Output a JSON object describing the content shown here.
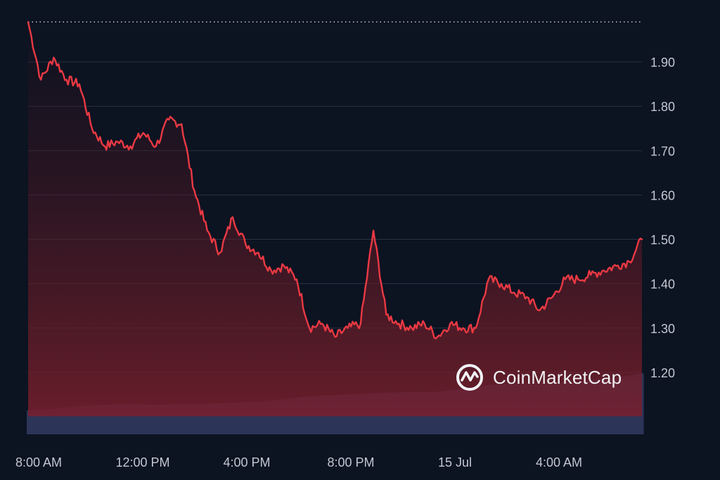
{
  "watermark": {
    "text": "CoinMarketCap",
    "icon": "coinmarketcap-logo-icon"
  },
  "colors": {
    "background": "#0c1321",
    "price_line": "#ea3943",
    "area_fill_top": "#7a1f2c",
    "volume_bar": "#2c3558",
    "grid": "#2a3344",
    "tick_text": "#c3c8d2"
  },
  "chart_data": {
    "type": "line",
    "ylim": [
      1.1,
      2.0
    ],
    "yticks": [
      1.9,
      1.8,
      1.7,
      1.6,
      1.5,
      1.4,
      1.3,
      1.2
    ],
    "ytick_labels": [
      "1.90",
      "1.80",
      "1.70",
      "1.60",
      "1.50",
      "1.40",
      "1.30",
      "1.20"
    ],
    "xlim": [
      0,
      24
    ],
    "xticks": [
      0,
      4,
      8,
      12,
      16,
      20
    ],
    "xtick_labels": [
      "8:00 AM",
      "12:00 PM",
      "4:00 PM",
      "8:00 PM",
      "15 Jul",
      "4:00 AM"
    ],
    "grid": true,
    "reference_line_dotted": 1.99,
    "series": [
      {
        "kind": "price",
        "x": [
          0,
          0.5,
          1,
          1.5,
          2,
          2.5,
          3,
          3.5,
          4,
          4.5,
          5,
          5.5,
          6,
          6.5,
          7,
          7.5,
          8,
          8.5,
          9,
          9.5,
          10,
          10.5,
          11,
          11.5,
          12,
          12.5,
          13,
          13.5,
          14,
          14.5,
          15,
          15.5,
          16,
          16.5,
          17,
          17.5,
          18,
          18.5,
          19,
          19.5,
          20,
          20.5,
          21,
          21.5,
          22,
          22.5,
          23,
          23.5,
          24
        ],
        "y": [
          1.99,
          1.86,
          1.91,
          1.86,
          1.85,
          1.75,
          1.71,
          1.72,
          1.71,
          1.74,
          1.71,
          1.77,
          1.76,
          1.61,
          1.52,
          1.47,
          1.55,
          1.49,
          1.47,
          1.43,
          1.44,
          1.41,
          1.3,
          1.31,
          1.28,
          1.3,
          1.31,
          1.52,
          1.33,
          1.31,
          1.3,
          1.31,
          1.28,
          1.31,
          1.3,
          1.3,
          1.41,
          1.4,
          1.38,
          1.37,
          1.34,
          1.37,
          1.41,
          1.41,
          1.42,
          1.43,
          1.44,
          1.45,
          1.5
        ]
      },
      {
        "kind": "volume",
        "x": [
          0,
          1,
          2,
          3,
          4,
          5,
          6,
          7,
          8,
          9,
          10,
          11,
          12,
          13,
          14,
          15,
          16,
          17,
          18,
          19,
          20,
          21,
          22,
          23,
          24
        ],
        "y": [
          0.22,
          0.23,
          0.26,
          0.27,
          0.28,
          0.27,
          0.28,
          0.28,
          0.29,
          0.3,
          0.32,
          0.35,
          0.36,
          0.37,
          0.38,
          0.39,
          0.39,
          0.42,
          0.45,
          0.47,
          0.47,
          0.48,
          0.5,
          0.52,
          0.56
        ]
      }
    ]
  }
}
